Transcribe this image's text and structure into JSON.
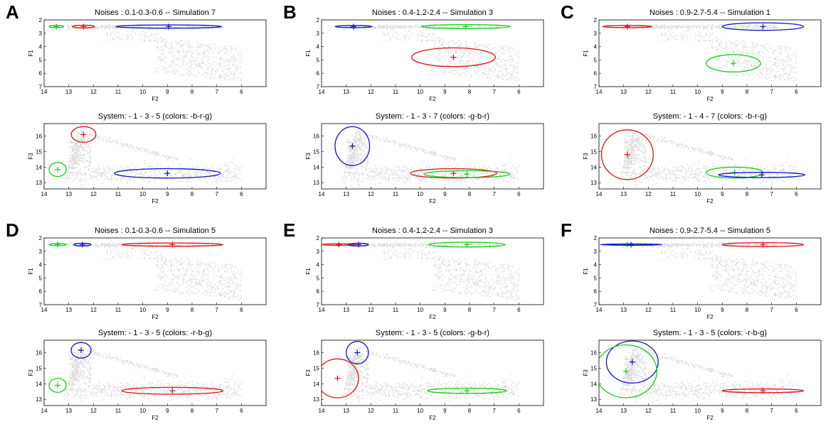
{
  "figure": {
    "series_colors": {
      "r": "#e01010",
      "g": "#10d010",
      "b": "#1010c8"
    },
    "cloud_color": "#d9d9d9"
  },
  "chart_data": [
    {
      "panel": "A",
      "top": {
        "type": "scatter",
        "title": "Noises : 0.1-0.3-0.6 -- Simulation 7",
        "xlabel": "F2",
        "ylabel": "F1",
        "xlim": [
          14,
          5
        ],
        "ylim": [
          7,
          2
        ],
        "xticks": [
          14,
          13,
          12,
          11,
          10,
          9,
          8,
          7,
          6
        ],
        "yticks": [
          2,
          3,
          4,
          5,
          6,
          7
        ],
        "ellipses": [
          {
            "color": "g",
            "cx": 13.5,
            "cy": 2.5,
            "rx": 0.3,
            "ry": 0.08
          },
          {
            "color": "r",
            "cx": 12.4,
            "cy": 2.5,
            "rx": 0.45,
            "ry": 0.1
          },
          {
            "color": "b",
            "cx": 8.95,
            "cy": 2.5,
            "rx": 2.15,
            "ry": 0.12
          }
        ]
      },
      "bottom": {
        "type": "scatter",
        "title": "System: - 1 - 3 - 5  (colors: -b-r-g)",
        "xlabel": "F2",
        "ylabel": "F3",
        "xlim": [
          14,
          5
        ],
        "ylim": [
          12.6,
          16.8
        ],
        "xticks": [
          14,
          13,
          12,
          11,
          10,
          9,
          8,
          7,
          6
        ],
        "yticks": [
          13,
          14,
          15,
          16
        ],
        "ellipses": [
          {
            "color": "r",
            "cx": 12.4,
            "cy": 16.1,
            "rx": 0.5,
            "ry": 0.5
          },
          {
            "color": "g",
            "cx": 13.45,
            "cy": 13.85,
            "rx": 0.35,
            "ry": 0.45
          },
          {
            "color": "b",
            "cx": 9.0,
            "cy": 13.6,
            "rx": 2.15,
            "ry": 0.3
          }
        ]
      }
    },
    {
      "panel": "B",
      "top": {
        "type": "scatter",
        "title": "Noises : 0.4-1.2-2.4 -- Simulation 3",
        "xlabel": "F2",
        "ylabel": "F1",
        "xlim": [
          14,
          5
        ],
        "ylim": [
          7,
          2
        ],
        "xticks": [
          14,
          13,
          12,
          11,
          10,
          9,
          8,
          7,
          6
        ],
        "yticks": [
          2,
          3,
          4,
          5,
          6,
          7
        ],
        "ellipses": [
          {
            "color": "b",
            "cx": 12.7,
            "cy": 2.5,
            "rx": 0.75,
            "ry": 0.08
          },
          {
            "color": "g",
            "cx": 8.15,
            "cy": 2.5,
            "rx": 1.8,
            "ry": 0.15
          },
          {
            "color": "r",
            "cx": 8.65,
            "cy": 4.8,
            "rx": 1.7,
            "ry": 0.7
          }
        ]
      },
      "bottom": {
        "type": "scatter",
        "title": "System: - 1 - 3 - 7  (colors: -g-b-r)",
        "xlabel": "F2",
        "ylabel": "F3",
        "xlim": [
          14,
          5
        ],
        "ylim": [
          12.6,
          16.8
        ],
        "xticks": [
          14,
          13,
          12,
          11,
          10,
          9,
          8,
          7,
          6
        ],
        "yticks": [
          13,
          14,
          15,
          16
        ],
        "ellipses": [
          {
            "color": "b",
            "cx": 12.75,
            "cy": 15.35,
            "rx": 0.7,
            "ry": 1.25
          },
          {
            "color": "r",
            "cx": 8.65,
            "cy": 13.6,
            "rx": 1.75,
            "ry": 0.3
          },
          {
            "color": "g",
            "cx": 8.1,
            "cy": 13.55,
            "rx": 1.75,
            "ry": 0.22
          }
        ]
      }
    },
    {
      "panel": "C",
      "top": {
        "type": "scatter",
        "title": "Noises : 0.9-2.7-5.4 -- Simulation 1",
        "xlabel": "F2",
        "ylabel": "F1",
        "xlim": [
          14,
          5
        ],
        "ylim": [
          7,
          2
        ],
        "xticks": [
          14,
          13,
          12,
          11,
          10,
          9,
          8,
          7,
          6
        ],
        "yticks": [
          2,
          3,
          4,
          5,
          6,
          7
        ],
        "ellipses": [
          {
            "color": "r",
            "cx": 12.85,
            "cy": 2.5,
            "rx": 1.0,
            "ry": 0.08
          },
          {
            "color": "b",
            "cx": 7.35,
            "cy": 2.5,
            "rx": 1.65,
            "ry": 0.28
          },
          {
            "color": "g",
            "cx": 8.55,
            "cy": 5.25,
            "rx": 1.1,
            "ry": 0.65
          }
        ]
      },
      "bottom": {
        "type": "scatter",
        "title": "System: - 1 - 4 - 7  (colors: -b-r-g)",
        "xlabel": "F2",
        "ylabel": "F3",
        "xlim": [
          14,
          5
        ],
        "ylim": [
          12.6,
          16.8
        ],
        "xticks": [
          14,
          13,
          12,
          11,
          10,
          9,
          8,
          7,
          6
        ],
        "yticks": [
          13,
          14,
          15,
          16
        ],
        "ellipses": [
          {
            "color": "r",
            "cx": 12.85,
            "cy": 14.8,
            "rx": 1.05,
            "ry": 1.6
          },
          {
            "color": "g",
            "cx": 8.5,
            "cy": 13.65,
            "rx": 1.15,
            "ry": 0.35
          },
          {
            "color": "b",
            "cx": 7.4,
            "cy": 13.5,
            "rx": 1.75,
            "ry": 0.17
          }
        ]
      }
    },
    {
      "panel": "D",
      "top": {
        "type": "scatter",
        "title": "Noises : 0.1-0.3-0.6 -- Simulation 5",
        "xlabel": "F2",
        "ylabel": "F1",
        "xlim": [
          14,
          5
        ],
        "ylim": [
          7,
          2
        ],
        "xticks": [
          14,
          13,
          12,
          11,
          10,
          9,
          8,
          7,
          6
        ],
        "yticks": [
          2,
          3,
          4,
          5,
          6,
          7
        ],
        "ellipses": [
          {
            "color": "g",
            "cx": 13.45,
            "cy": 2.5,
            "rx": 0.35,
            "ry": 0.08
          },
          {
            "color": "b",
            "cx": 12.45,
            "cy": 2.5,
            "rx": 0.35,
            "ry": 0.1
          },
          {
            "color": "r",
            "cx": 8.8,
            "cy": 2.5,
            "rx": 2.05,
            "ry": 0.12
          }
        ]
      },
      "bottom": {
        "type": "scatter",
        "title": "System: - 1 - 3 - 5  (colors: -r-b-g)",
        "xlabel": "F2",
        "ylabel": "F3",
        "xlim": [
          14,
          5
        ],
        "ylim": [
          12.6,
          16.8
        ],
        "xticks": [
          14,
          13,
          12,
          11,
          10,
          9,
          8,
          7,
          6
        ],
        "yticks": [
          13,
          14,
          15,
          16
        ],
        "ellipses": [
          {
            "color": "b",
            "cx": 12.5,
            "cy": 16.15,
            "rx": 0.4,
            "ry": 0.5
          },
          {
            "color": "g",
            "cx": 13.45,
            "cy": 13.9,
            "rx": 0.35,
            "ry": 0.45
          },
          {
            "color": "r",
            "cx": 8.8,
            "cy": 13.55,
            "rx": 2.05,
            "ry": 0.22
          }
        ]
      }
    },
    {
      "panel": "E",
      "top": {
        "type": "scatter",
        "title": "Noises : 0.4-1.2-2.4 -- Simulation 3",
        "xlabel": "F2",
        "ylabel": "F1",
        "xlim": [
          14,
          5
        ],
        "ylim": [
          7,
          2
        ],
        "xticks": [
          14,
          13,
          12,
          11,
          10,
          9,
          8,
          7,
          6
        ],
        "yticks": [
          2,
          3,
          4,
          5,
          6,
          7
        ],
        "ellipses": [
          {
            "color": "r",
            "cx": 13.3,
            "cy": 2.5,
            "rx": 0.7,
            "ry": 0.06
          },
          {
            "color": "b",
            "cx": 12.5,
            "cy": 2.5,
            "rx": 0.4,
            "ry": 0.1
          },
          {
            "color": "g",
            "cx": 8.1,
            "cy": 2.5,
            "rx": 1.55,
            "ry": 0.18
          }
        ]
      },
      "bottom": {
        "type": "scatter",
        "title": "System: - 1 - 3 - 5  (colors: -g-b-r)",
        "xlabel": "F2",
        "ylabel": "F3",
        "xlim": [
          14,
          5
        ],
        "ylim": [
          12.6,
          16.8
        ],
        "xticks": [
          14,
          13,
          12,
          11,
          10,
          9,
          8,
          7,
          6
        ],
        "yticks": [
          13,
          14,
          15,
          16
        ],
        "ellipses": [
          {
            "color": "b",
            "cx": 12.55,
            "cy": 16.0,
            "rx": 0.45,
            "ry": 0.72
          },
          {
            "color": "r",
            "cx": 13.35,
            "cy": 14.35,
            "rx": 0.85,
            "ry": 1.25
          },
          {
            "color": "g",
            "cx": 8.1,
            "cy": 13.55,
            "rx": 1.6,
            "ry": 0.17
          }
        ]
      }
    },
    {
      "panel": "F",
      "top": {
        "type": "scatter",
        "title": "Noises : 0.9-2.7-5.4 -- Simulation 5",
        "xlabel": "F2",
        "ylabel": "F1",
        "xlim": [
          14,
          5
        ],
        "ylim": [
          7,
          2
        ],
        "xticks": [
          14,
          13,
          12,
          11,
          10,
          9,
          8,
          7,
          6
        ],
        "yticks": [
          2,
          3,
          4,
          5,
          6,
          7
        ],
        "ellipses": [
          {
            "color": "g",
            "cx": 12.85,
            "cy": 2.5,
            "rx": 0.9,
            "ry": 0.05
          },
          {
            "color": "b",
            "cx": 12.7,
            "cy": 2.5,
            "rx": 1.25,
            "ry": 0.05
          },
          {
            "color": "r",
            "cx": 7.35,
            "cy": 2.5,
            "rx": 1.65,
            "ry": 0.15
          }
        ]
      },
      "bottom": {
        "type": "scatter",
        "title": "System: - 1 - 3 - 5  (colors: -r-b-g)",
        "xlabel": "F2",
        "ylabel": "F3",
        "xlim": [
          14,
          5
        ],
        "ylim": [
          12.6,
          16.8
        ],
        "xticks": [
          14,
          13,
          12,
          11,
          10,
          9,
          8,
          7,
          6
        ],
        "yticks": [
          13,
          14,
          15,
          16
        ],
        "ellipses": [
          {
            "color": "b",
            "cx": 12.65,
            "cy": 15.4,
            "rx": 1.05,
            "ry": 1.35
          },
          {
            "color": "g",
            "cx": 12.9,
            "cy": 14.8,
            "rx": 1.25,
            "ry": 1.7
          },
          {
            "color": "r",
            "cx": 7.35,
            "cy": 13.55,
            "rx": 1.65,
            "ry": 0.12
          }
        ]
      }
    }
  ]
}
